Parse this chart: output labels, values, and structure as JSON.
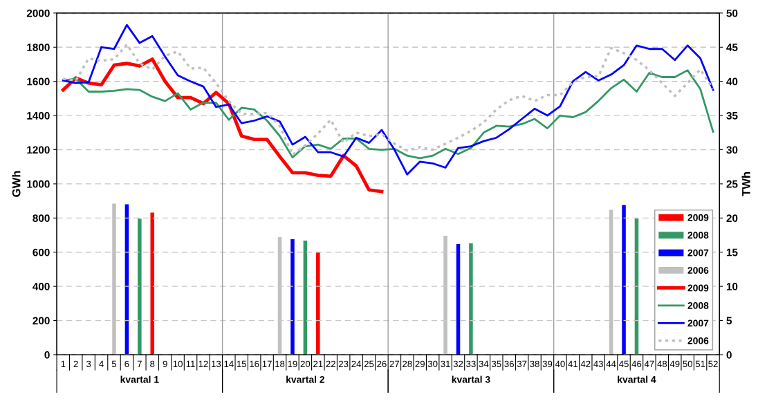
{
  "chart_data": {
    "type": "line",
    "categories": [
      "1",
      "2",
      "3",
      "4",
      "5",
      "6",
      "7",
      "8",
      "9",
      "10",
      "11",
      "12",
      "13",
      "14",
      "15",
      "16",
      "17",
      "18",
      "19",
      "20",
      "21",
      "22",
      "23",
      "24",
      "25",
      "26",
      "27",
      "28",
      "29",
      "30",
      "31",
      "32",
      "33",
      "34",
      "35",
      "36",
      "37",
      "38",
      "39",
      "40",
      "41",
      "42",
      "43",
      "44",
      "45",
      "46",
      "47",
      "48",
      "49",
      "50",
      "51",
      "52"
    ],
    "ylabel": "GWh",
    "y2label": "TWh",
    "ylim": [
      0,
      2000
    ],
    "yticks": [
      0,
      200,
      400,
      600,
      800,
      1000,
      1200,
      1400,
      1600,
      1800,
      2000
    ],
    "y2lim": [
      0,
      50
    ],
    "y2ticks": [
      0,
      5,
      10,
      15,
      20,
      25,
      30,
      35,
      40,
      45,
      50
    ],
    "grid": "y",
    "legend": "bottom right",
    "marker": "none",
    "annotations": [
      "kvartal 1",
      "kvartal 2",
      "kvartal 3",
      "kvartal 4"
    ],
    "series": [
      {
        "name": "2009",
        "type": "bar",
        "axis": "y2",
        "color": "#ff0000",
        "values": [
          null,
          null,
          null,
          null,
          null,
          null,
          null,
          20.8,
          null,
          null,
          null,
          null,
          null,
          null,
          null,
          null,
          null,
          null,
          null,
          null,
          15.0,
          null,
          null,
          null,
          null,
          null,
          null,
          null,
          null,
          null,
          null,
          null,
          null,
          null,
          null,
          null,
          null,
          null,
          null,
          null,
          null,
          null,
          null,
          null,
          null,
          null,
          null,
          null,
          null,
          null,
          null,
          null
        ]
      },
      {
        "name": "2008",
        "type": "bar",
        "axis": "y2",
        "color": "#339966",
        "values": [
          null,
          null,
          null,
          null,
          null,
          null,
          19.9,
          null,
          null,
          null,
          null,
          null,
          null,
          null,
          null,
          null,
          null,
          null,
          null,
          16.7,
          null,
          null,
          null,
          null,
          null,
          null,
          null,
          null,
          null,
          null,
          null,
          null,
          16.3,
          null,
          null,
          null,
          null,
          null,
          null,
          null,
          null,
          null,
          null,
          null,
          null,
          19.9,
          null,
          null,
          null,
          null,
          null,
          null
        ]
      },
      {
        "name": "2007",
        "type": "bar",
        "axis": "y2",
        "color": "#0000ff",
        "values": [
          null,
          null,
          null,
          null,
          null,
          22.0,
          null,
          null,
          null,
          null,
          null,
          null,
          null,
          null,
          null,
          null,
          null,
          null,
          16.9,
          null,
          null,
          null,
          null,
          null,
          null,
          null,
          null,
          null,
          null,
          null,
          null,
          16.2,
          null,
          null,
          null,
          null,
          null,
          null,
          null,
          null,
          null,
          null,
          null,
          null,
          21.9,
          null,
          null,
          null,
          null,
          null,
          null,
          null
        ]
      },
      {
        "name": "2006",
        "type": "bar",
        "axis": "y2",
        "color": "#c0c0c0",
        "values": [
          null,
          null,
          null,
          null,
          22.1,
          null,
          null,
          null,
          null,
          null,
          null,
          null,
          null,
          null,
          null,
          null,
          null,
          17.2,
          null,
          null,
          null,
          null,
          null,
          null,
          null,
          null,
          null,
          null,
          null,
          null,
          17.4,
          null,
          null,
          null,
          null,
          null,
          null,
          null,
          null,
          null,
          null,
          null,
          null,
          21.2,
          null,
          null,
          null,
          null,
          null,
          null,
          null,
          null
        ]
      },
      {
        "name": "2009",
        "line_style": "solid",
        "color": "#ff0000",
        "values": [
          1550,
          1620,
          1590,
          1580,
          1695,
          1705,
          1690,
          1730,
          1600,
          1505,
          1505,
          1470,
          1535,
          1470,
          1280,
          1260,
          1260,
          1160,
          1065,
          1065,
          1050,
          1045,
          1165,
          1105,
          965,
          955,
          null,
          null,
          null,
          null,
          null,
          null,
          null,
          null,
          null,
          null,
          null,
          null,
          null,
          null,
          null,
          null,
          null,
          null,
          null,
          null,
          null,
          null,
          null,
          null,
          null,
          null
        ]
      },
      {
        "name": "2008",
        "line_style": "solid",
        "color": "#339966",
        "values": [
          1605,
          1615,
          1540,
          1540,
          1545,
          1555,
          1550,
          1510,
          1485,
          1530,
          1435,
          1475,
          1475,
          1375,
          1445,
          1435,
          1370,
          1280,
          1155,
          1220,
          1230,
          1205,
          1265,
          1265,
          1205,
          1200,
          1205,
          1165,
          1150,
          1165,
          1205,
          1175,
          1210,
          1300,
          1340,
          1335,
          1350,
          1380,
          1325,
          1400,
          1390,
          1420,
          1485,
          1560,
          1610,
          1540,
          1650,
          1625,
          1625,
          1665,
          1555,
          1305
        ]
      },
      {
        "name": "2007",
        "line_style": "solid",
        "color": "#0000ff",
        "values": [
          1605,
          1590,
          1595,
          1800,
          1790,
          1930,
          1825,
          1865,
          1745,
          1635,
          1600,
          1570,
          1450,
          1465,
          1355,
          1370,
          1395,
          1365,
          1230,
          1275,
          1185,
          1185,
          1160,
          1270,
          1240,
          1315,
          1200,
          1055,
          1130,
          1120,
          1095,
          1210,
          1220,
          1250,
          1270,
          1320,
          1380,
          1440,
          1400,
          1455,
          1600,
          1655,
          1605,
          1640,
          1695,
          1810,
          1790,
          1790,
          1725,
          1810,
          1735,
          1550
        ]
      },
      {
        "name": "2006",
        "line_style": "dotted",
        "color": "#c0c0c0",
        "values": [
          1615,
          1605,
          1735,
          1720,
          1730,
          1815,
          1705,
          1670,
          1750,
          1775,
          1675,
          1680,
          1590,
          1485,
          1410,
          1410,
          1415,
          1340,
          1170,
          1225,
          1295,
          1375,
          1240,
          1300,
          1280,
          1290,
          1235,
          1195,
          1215,
          1200,
          1235,
          1270,
          1310,
          1360,
          1435,
          1490,
          1515,
          1485,
          1520,
          1520,
          1595,
          1625,
          1630,
          1795,
          1765,
          1725,
          1665,
          1590,
          1515,
          1590,
          1670,
          1555
        ]
      }
    ]
  }
}
